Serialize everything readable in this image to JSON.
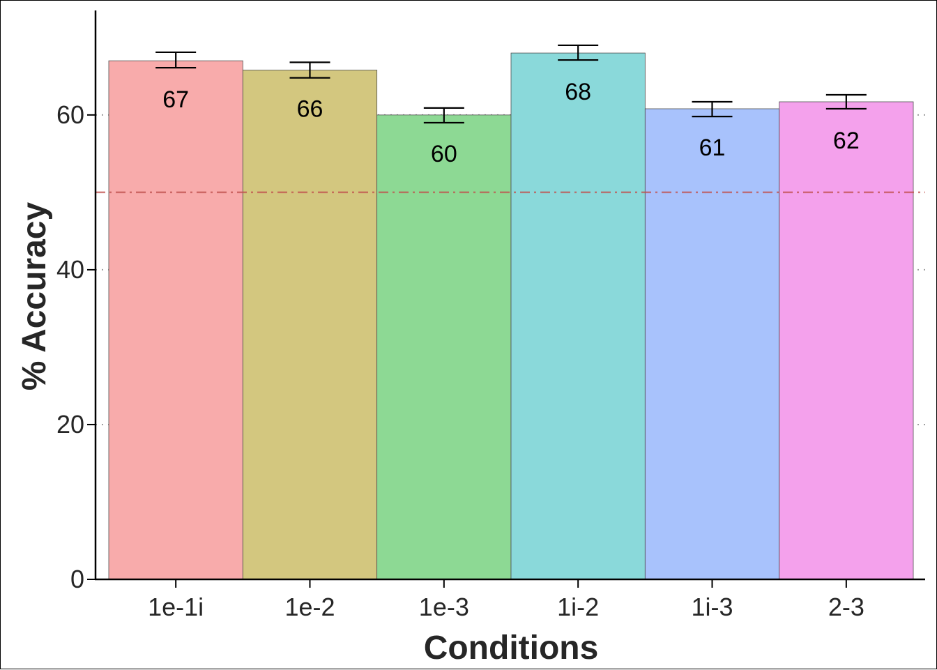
{
  "chart_data": {
    "type": "bar",
    "title": "",
    "xlabel": "Conditions",
    "ylabel": "% Accuracy",
    "categories": [
      "1e-1i",
      "1e-2",
      "1e-3",
      "1i-2",
      "1i-3",
      "2-3"
    ],
    "values": [
      67,
      65.8,
      60,
      68,
      60.8,
      61.7
    ],
    "value_labels": [
      "67",
      "66",
      "60",
      "68",
      "61",
      "62"
    ],
    "error_bars": [
      [
        66.1,
        68.1
      ],
      [
        64.8,
        66.8
      ],
      [
        59.0,
        60.9
      ],
      [
        67.1,
        69.0
      ],
      [
        59.8,
        61.7
      ],
      [
        60.8,
        62.6
      ]
    ],
    "colors": [
      "#f8abab",
      "#d3c77f",
      "#8dd994",
      "#8ad9da",
      "#a8c2fc",
      "#f4a1ec"
    ],
    "ylim": [
      0,
      73.5
    ],
    "yticks": [
      0,
      20,
      40,
      60
    ],
    "chance_line": 50,
    "chance_line_color": "#c0504d",
    "grid": "horizontal-dotted"
  }
}
